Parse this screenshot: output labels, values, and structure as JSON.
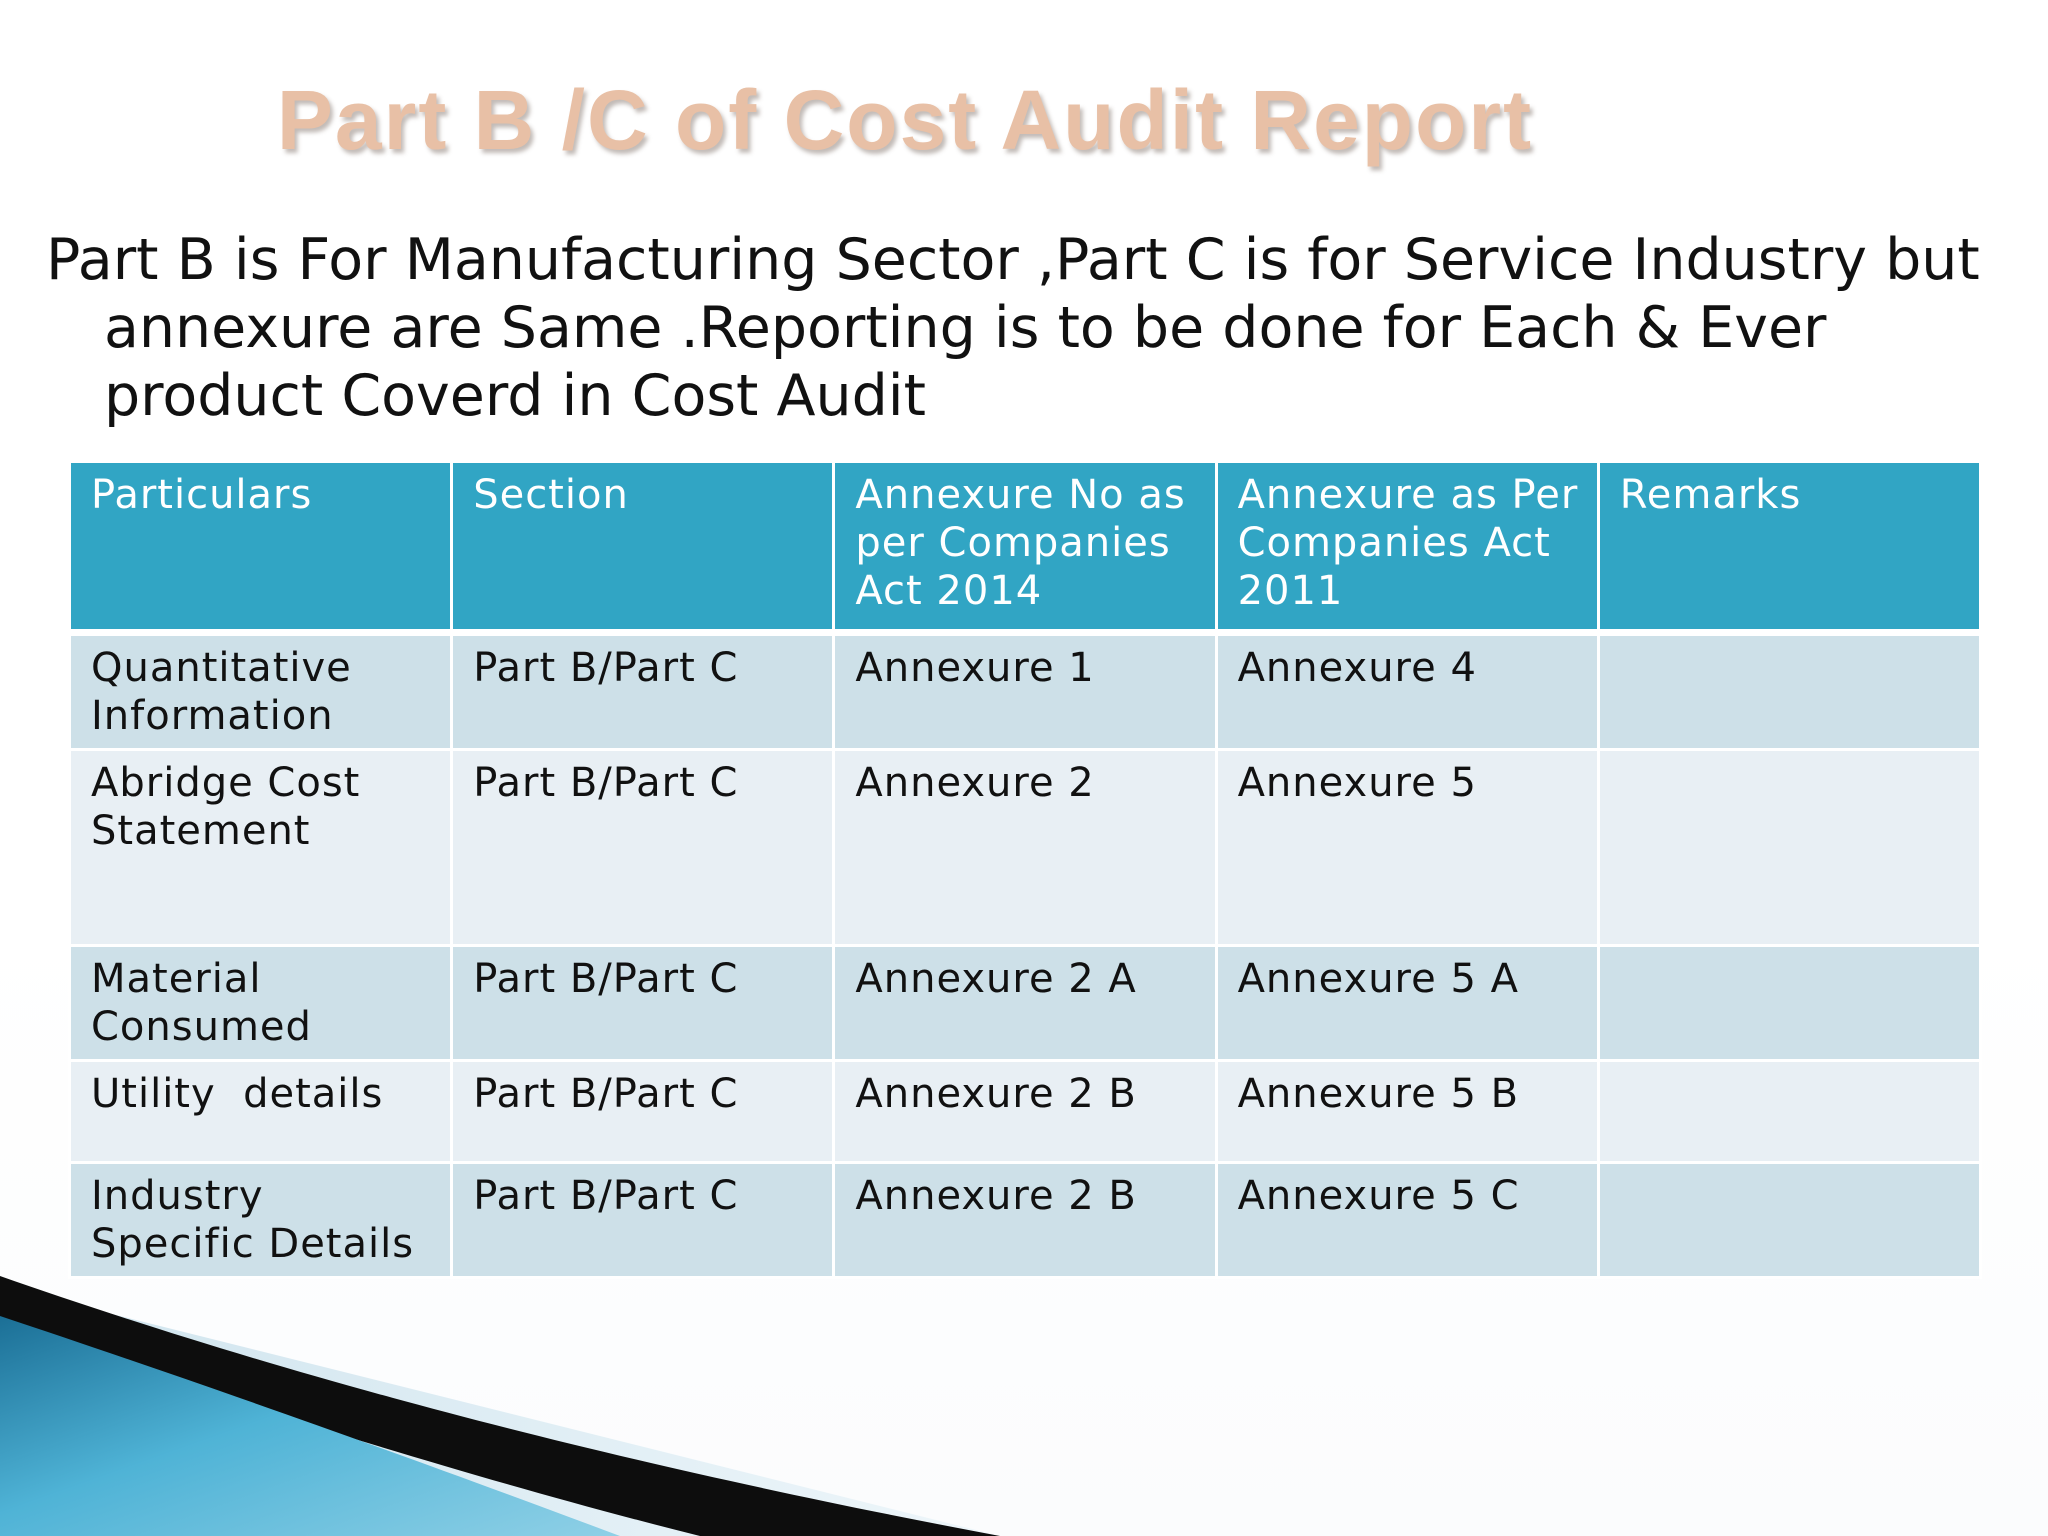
{
  "title": "Part B /C of Cost Audit Report",
  "intro": "Part B is For Manufacturing Sector ,Part C is for Service Industry but annexure are Same .Reporting is to be done for Each & Ever product Coverd in Cost Audit",
  "table": {
    "headers": [
      "Particulars",
      "Section",
      "Annexure No as per Companies Act 2014",
      "Annexure as Per Companies Act 2011",
      "Remarks"
    ],
    "rows": [
      [
        "Quantitative Information",
        "Part B/Part C",
        "Annexure 1",
        "Annexure 4",
        ""
      ],
      [
        "Abridge Cost Statement",
        "Part B/Part C",
        "Annexure 2",
        "Annexure 5",
        ""
      ],
      [
        "Material Consumed",
        "Part B/Part C",
        "Annexure 2 A",
        "Annexure 5 A",
        ""
      ],
      [
        "Utility  details",
        "Part B/Part C",
        "Annexure 2 B",
        "Annexure 5 B",
        ""
      ],
      [
        "Industry Specific Details",
        "Part B/Part C",
        "Annexure 2 B",
        "Annexure 5 C",
        ""
      ]
    ]
  },
  "colors": {
    "header_bg": "#31a5c4",
    "row_odd": "#cde0e8",
    "row_even": "#e8eff4",
    "title_color": "#e8c0a6"
  }
}
